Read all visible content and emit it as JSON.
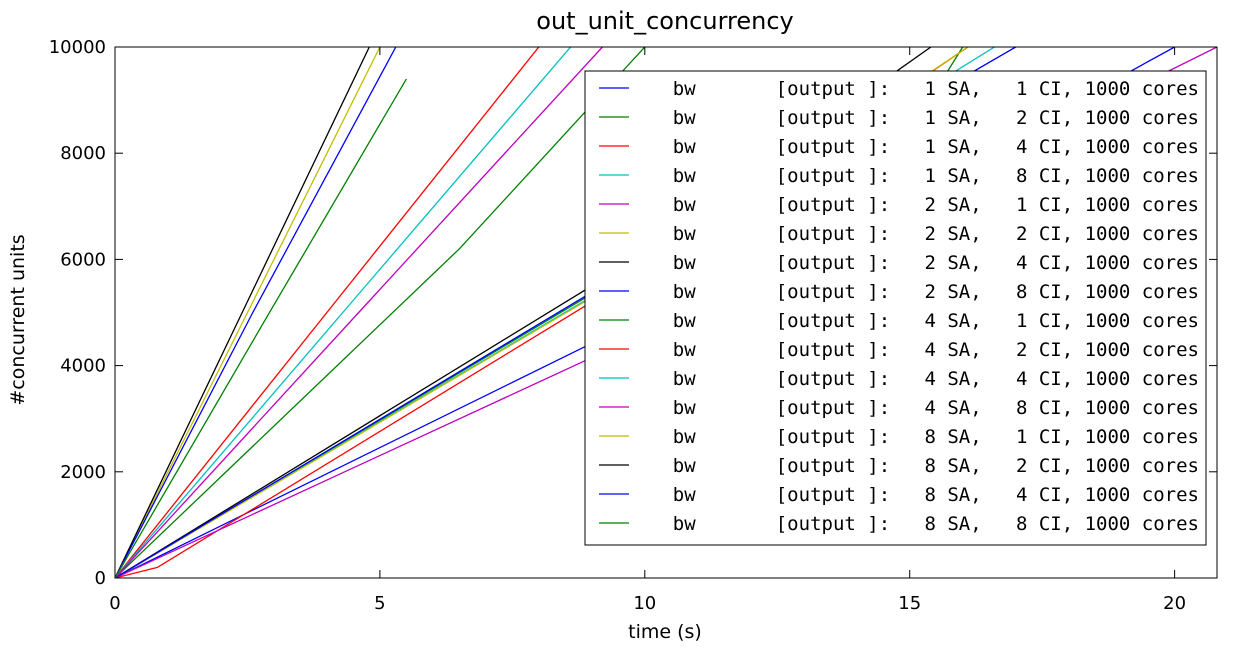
{
  "chart_data": {
    "type": "line",
    "title": "out_unit_concurrency",
    "xlabel": "time (s)",
    "ylabel": "#concurrent units",
    "xlim": [
      0,
      20.8
    ],
    "ylim": [
      0,
      10000
    ],
    "xticks": [
      0,
      5,
      10,
      15,
      20
    ],
    "yticks": [
      0,
      2000,
      4000,
      6000,
      8000,
      10000
    ],
    "grid": false,
    "legend": "top-right",
    "series": [
      {
        "name": "bw       [output ]:   1 SA,   1 CI, 1000 cores",
        "color": "#0000ff",
        "x": [
          0,
          9.0,
          15.0,
          20.0
        ],
        "y": [
          0,
          4420,
          7250,
          10000
        ]
      },
      {
        "name": "bw       [output ]:   1 SA,   2 CI, 1000 cores",
        "color": "#008000",
        "x": [
          0,
          9.0,
          15.5,
          16.0
        ],
        "y": [
          0,
          5350,
          9200,
          10000
        ]
      },
      {
        "name": "bw       [output ]:   1 SA,   4 CI, 1000 cores",
        "color": "#ff0000",
        "x": [
          0,
          0.8,
          9.0,
          16.1
        ],
        "y": [
          0,
          200,
          5200,
          10000
        ]
      },
      {
        "name": "bw       [output ]:   1 SA,   8 CI, 1000 cores",
        "color": "#00bfbf",
        "x": [
          0,
          9.0,
          16.6
        ],
        "y": [
          0,
          5300,
          10000
        ]
      },
      {
        "name": "bw       [output ]:   2 SA,   1 CI, 1000 cores",
        "color": "#bf00bf",
        "x": [
          0,
          9.0,
          20.8
        ],
        "y": [
          0,
          4150,
          10000
        ]
      },
      {
        "name": "bw       [output ]:   2 SA,   2 CI, 1000 cores",
        "color": "#bfbf00",
        "x": [
          0,
          9.0,
          16.1
        ],
        "y": [
          0,
          5280,
          10000
        ]
      },
      {
        "name": "bw       [output ]:   2 SA,   4 CI, 1000 cores",
        "color": "#000000",
        "x": [
          0,
          9.0,
          15.4
        ],
        "y": [
          0,
          5500,
          10000
        ]
      },
      {
        "name": "bw       [output ]:   2 SA,   8 CI, 1000 cores",
        "color": "#0000ff",
        "x": [
          0,
          9.0,
          17.0
        ],
        "y": [
          0,
          5380,
          10000
        ]
      },
      {
        "name": "bw       [output ]:   4 SA,   1 CI, 1000 cores",
        "color": "#008000",
        "x": [
          0,
          6.5,
          10.0
        ],
        "y": [
          0,
          6200,
          10000
        ]
      },
      {
        "name": "bw       [output ]:   4 SA,   2 CI, 1000 cores",
        "color": "#ff0000",
        "x": [
          0,
          4.0,
          8.0
        ],
        "y": [
          0,
          5000,
          10000
        ]
      },
      {
        "name": "bw       [output ]:   4 SA,   4 CI, 1000 cores",
        "color": "#00bfbf",
        "x": [
          0,
          4.3,
          8.6
        ],
        "y": [
          0,
          5000,
          10000
        ]
      },
      {
        "name": "bw       [output ]:   4 SA,   8 CI, 1000 cores",
        "color": "#bf00bf",
        "x": [
          0,
          4.6,
          9.2
        ],
        "y": [
          0,
          5000,
          10000
        ]
      },
      {
        "name": "bw       [output ]:   8 SA,   1 CI, 1000 cores",
        "color": "#bfbf00",
        "x": [
          0,
          2.5,
          5.0
        ],
        "y": [
          0,
          5000,
          10000
        ]
      },
      {
        "name": "bw       [output ]:   8 SA,   2 CI, 1000 cores",
        "color": "#000000",
        "x": [
          0,
          2.4,
          4.8
        ],
        "y": [
          0,
          5000,
          10000
        ]
      },
      {
        "name": "bw       [output ]:   8 SA,   4 CI, 1000 cores",
        "color": "#0000ff",
        "x": [
          0,
          2.6,
          5.3
        ],
        "y": [
          0,
          5000,
          10000
        ]
      },
      {
        "name": "bw       [output ]:   8 SA,   8 CI, 1000 cores",
        "color": "#008000",
        "x": [
          0,
          2.8,
          5.5
        ],
        "y": [
          0,
          4800,
          9400
        ]
      }
    ]
  }
}
